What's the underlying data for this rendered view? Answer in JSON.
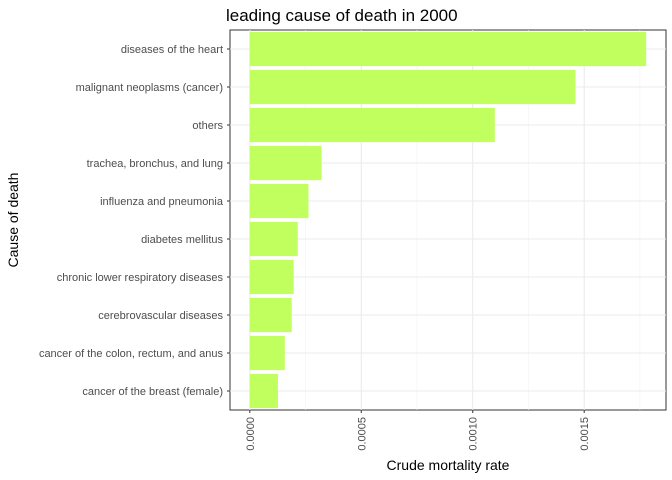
{
  "chart_data": {
    "type": "bar",
    "orientation": "horizontal",
    "title": "leading cause of death in 2000",
    "xlabel": "Crude mortality rate",
    "ylabel": "Cause of death",
    "categories": [
      "diseases of the heart",
      "malignant neoplasms (cancer)",
      "others",
      "trachea, bronchus, and lung",
      "influenza and pneumonia",
      "diabetes mellitus",
      "chronic lower respiratory diseases",
      "cerebrovascular diseases",
      "cancer of the colon, rectum, and anus",
      "cancer of the breast (female)"
    ],
    "values": [
      0.001778,
      0.001461,
      0.001099,
      0.000322,
      0.000263,
      0.000215,
      0.000197,
      0.000188,
      0.000157,
      0.000126
    ],
    "xlim": [
      -8.89e-05,
      0.001867
    ],
    "xticks": [
      0.0,
      0.0005,
      0.001,
      0.0015
    ],
    "xtick_labels": [
      "0.0000",
      "0.0005",
      "0.0010",
      "0.0015"
    ],
    "grid": true,
    "bar_color": "#c1ff5f",
    "legend": "none"
  }
}
